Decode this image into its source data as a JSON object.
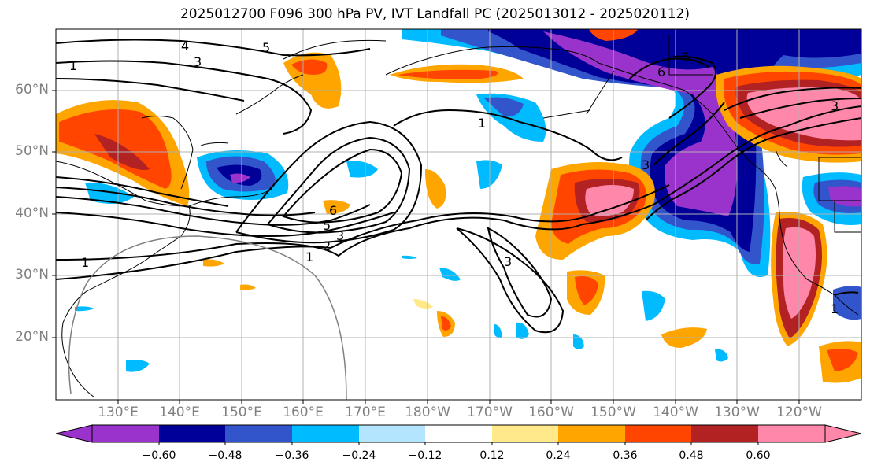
{
  "title": "2025012700 F096 300 hPa PV, IVT Landfall PC (2025013012 - 2025020112)",
  "map": {
    "lat_ticks": [
      {
        "label": "60°N",
        "lat": 60
      },
      {
        "label": "50°N",
        "lat": 50
      },
      {
        "label": "40°N",
        "lat": 40
      },
      {
        "label": "30°N",
        "lat": 30
      },
      {
        "label": "20°N",
        "lat": 20
      }
    ],
    "lon_ticks": [
      {
        "label": "130°E",
        "lon": 130
      },
      {
        "label": "140°E",
        "lon": 140
      },
      {
        "label": "150°E",
        "lon": 150
      },
      {
        "label": "160°E",
        "lon": 160
      },
      {
        "label": "170°E",
        "lon": 170
      },
      {
        "label": "180°W",
        "lon": 180
      },
      {
        "label": "170°W",
        "lon": 190
      },
      {
        "label": "160°W",
        "lon": 200
      },
      {
        "label": "150°W",
        "lon": 210
      },
      {
        "label": "140°W",
        "lon": 220
      },
      {
        "label": "130°W",
        "lon": 230
      },
      {
        "label": "120°W",
        "lon": 240
      }
    ],
    "extent": {
      "lon_min": 120,
      "lon_max": 250,
      "lat_min": 10,
      "lat_max": 70
    },
    "contour_labels": [
      "1",
      "2",
      "3",
      "4",
      "5",
      "6"
    ]
  },
  "colorbar": {
    "labels": [
      "−0.60",
      "−0.48",
      "−0.36",
      "−0.24",
      "−0.12",
      "0.12",
      "0.24",
      "0.36",
      "0.48",
      "0.60"
    ],
    "colors": [
      "#9933cc",
      "#000099",
      "#3355cc",
      "#00bbff",
      "#b3e5ff",
      "#ffffff",
      "#ffe98a",
      "#ffa500",
      "#ff4500",
      "#b22222",
      "#ff88aa"
    ]
  }
}
